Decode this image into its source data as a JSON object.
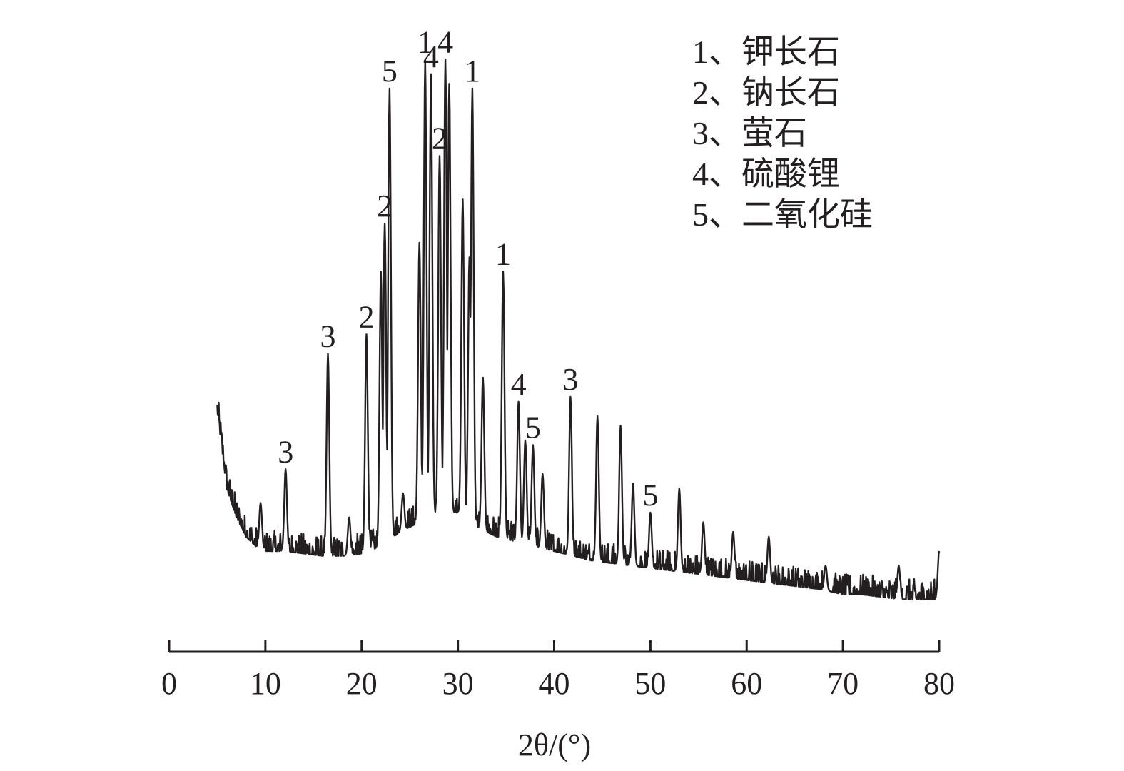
{
  "chart_data": {
    "type": "line",
    "title": "",
    "xlabel": "2θ/(°)",
    "ylabel": "",
    "xlim": [
      0,
      80
    ],
    "xticks": [
      0,
      10,
      20,
      30,
      40,
      50,
      60,
      70,
      80
    ],
    "xtick_labels": [
      "0",
      "10",
      "20",
      "30",
      "40",
      "50",
      "60",
      "70",
      "80"
    ],
    "y_axis_shown": false,
    "grid": false,
    "legend_position": "top-right",
    "line_color": "#231f20",
    "legend": [
      {
        "text": "1、钾长石"
      },
      {
        "text": "2、钠长石"
      },
      {
        "text": "3、萤石"
      },
      {
        "text": "4、硫酸锂"
      },
      {
        "text": "5、二氧化硅"
      }
    ],
    "baseline": [
      [
        5.0,
        0.45
      ],
      [
        6,
        0.29
      ],
      [
        7,
        0.23
      ],
      [
        8,
        0.19
      ],
      [
        9,
        0.17
      ],
      [
        10,
        0.16
      ],
      [
        12,
        0.16
      ],
      [
        14,
        0.155
      ],
      [
        16,
        0.15
      ],
      [
        18,
        0.15
      ],
      [
        20,
        0.155
      ],
      [
        22,
        0.17
      ],
      [
        24,
        0.2
      ],
      [
        26,
        0.22
      ],
      [
        28,
        0.24
      ],
      [
        30,
        0.24
      ],
      [
        32,
        0.21
      ],
      [
        34,
        0.19
      ],
      [
        36,
        0.18
      ],
      [
        38,
        0.17
      ],
      [
        40,
        0.16
      ],
      [
        44,
        0.14
      ],
      [
        48,
        0.13
      ],
      [
        52,
        0.12
      ],
      [
        56,
        0.11
      ],
      [
        60,
        0.1
      ],
      [
        64,
        0.09
      ],
      [
        68,
        0.08
      ],
      [
        70,
        0.07
      ],
      [
        72,
        0.07
      ],
      [
        76,
        0.06
      ],
      [
        80,
        0.06
      ]
    ],
    "peaks": [
      {
        "x": 9.5,
        "y": 0.26
      },
      {
        "x": 12.1,
        "y": 0.33,
        "label": "3"
      },
      {
        "x": 16.5,
        "y": 0.57,
        "label": "3"
      },
      {
        "x": 18.7,
        "y": 0.23
      },
      {
        "x": 20.5,
        "y": 0.61,
        "label": "2"
      },
      {
        "x": 22.0,
        "y": 0.74
      },
      {
        "x": 22.4,
        "y": 0.84,
        "label": "2"
      },
      {
        "x": 22.9,
        "y": 1.12,
        "label": "5"
      },
      {
        "x": 24.3,
        "y": 0.28
      },
      {
        "x": 26.0,
        "y": 0.8
      },
      {
        "x": 26.6,
        "y": 1.18,
        "label": "1"
      },
      {
        "x": 27.2,
        "y": 1.15,
        "label": "4"
      },
      {
        "x": 28.1,
        "y": 0.98,
        "label": "2"
      },
      {
        "x": 28.7,
        "y": 1.18,
        "label": "4"
      },
      {
        "x": 29.1,
        "y": 1.13
      },
      {
        "x": 30.5,
        "y": 0.89
      },
      {
        "x": 31.2,
        "y": 0.77
      },
      {
        "x": 31.5,
        "y": 1.12,
        "label": "1"
      },
      {
        "x": 32.6,
        "y": 0.52
      },
      {
        "x": 34.7,
        "y": 0.74,
        "label": "1"
      },
      {
        "x": 36.3,
        "y": 0.47,
        "label": "4"
      },
      {
        "x": 37.0,
        "y": 0.39
      },
      {
        "x": 37.8,
        "y": 0.38,
        "label": "5"
      },
      {
        "x": 38.8,
        "y": 0.32
      },
      {
        "x": 41.7,
        "y": 0.48,
        "label": "3"
      },
      {
        "x": 44.5,
        "y": 0.44
      },
      {
        "x": 46.9,
        "y": 0.42
      },
      {
        "x": 48.2,
        "y": 0.3
      },
      {
        "x": 50.0,
        "y": 0.24,
        "label": "5"
      },
      {
        "x": 53.0,
        "y": 0.29
      },
      {
        "x": 55.5,
        "y": 0.22
      },
      {
        "x": 58.6,
        "y": 0.2
      },
      {
        "x": 62.3,
        "y": 0.19
      },
      {
        "x": 68.2,
        "y": 0.13
      },
      {
        "x": 75.8,
        "y": 0.13
      },
      {
        "x": 80.0,
        "y": 0.16
      }
    ]
  }
}
